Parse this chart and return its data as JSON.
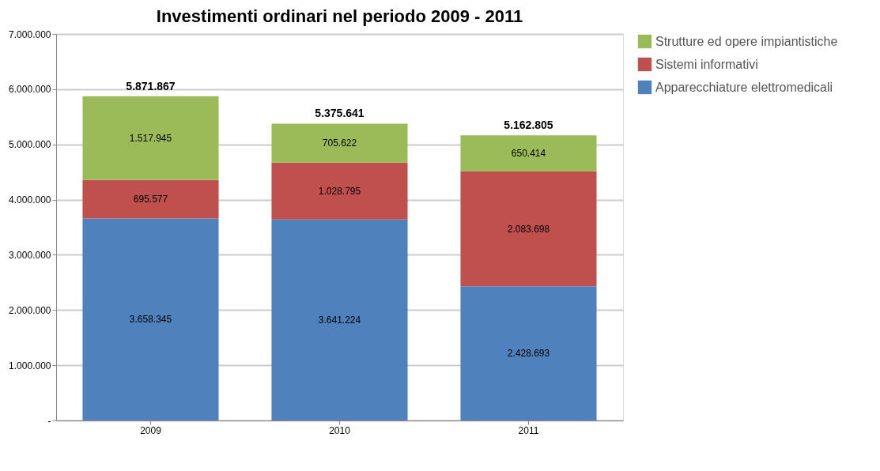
{
  "chart_data": {
    "type": "bar",
    "title": "Investimenti ordinari nel periodo 2009 - 2011",
    "categories": [
      "2009",
      "2010",
      "2011"
    ],
    "stacked": true,
    "series": [
      {
        "name": "Apparecchiature elettromedicali",
        "color": "#4f81bd",
        "values": [
          3658345,
          3641224,
          2428693
        ],
        "value_labels": [
          "3.658.345",
          "3.641.224",
          "2.428.693"
        ]
      },
      {
        "name": "Sistemi informativi",
        "color": "#c0504d",
        "values": [
          695577,
          1028795,
          2083698
        ],
        "value_labels": [
          "695.577",
          "1.028.795",
          "2.083.698"
        ]
      },
      {
        "name": "Strutture ed opere impiantistiche",
        "color": "#9bbb59",
        "values": [
          1517945,
          705622,
          650414
        ],
        "value_labels": [
          "1.517.945",
          "705.622",
          "650.414"
        ]
      }
    ],
    "totals": [
      "5.871.867",
      "5.375.641",
      "5.162.805"
    ],
    "ylim": [
      0,
      7000000
    ],
    "yticks": [
      {
        "value": 0,
        "label": "-"
      },
      {
        "value": 1000000,
        "label": "1.000.000"
      },
      {
        "value": 2000000,
        "label": "2.000.000"
      },
      {
        "value": 3000000,
        "label": "3.000.000"
      },
      {
        "value": 4000000,
        "label": "4.000.000"
      },
      {
        "value": 5000000,
        "label": "5.000.000"
      },
      {
        "value": 6000000,
        "label": "6.000.000"
      },
      {
        "value": 7000000,
        "label": "7.000.000"
      }
    ],
    "grid": "y",
    "legend": "right"
  }
}
